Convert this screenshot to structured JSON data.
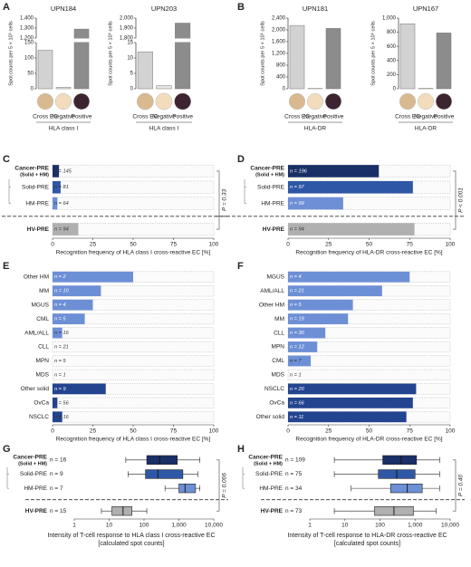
{
  "chart_data": [
    {
      "type": "bar",
      "panel": "A",
      "title": "UPN184",
      "ylabel": "Spot counts per 5 × 10⁵ cells",
      "xlabel": "HLA class I",
      "categories": [
        "Cross EC",
        "Negative",
        "Positive"
      ],
      "values": [
        125,
        5,
        1290
      ],
      "colors": [
        "#d2d2d2",
        "#e6e6e6",
        "#8c8c8c"
      ],
      "ylim": [
        0,
        1400
      ],
      "ybreak": [
        150,
        1200
      ],
      "yticks": [
        0,
        50,
        100,
        150,
        {
          "value": 1200,
          "label": "1,200"
        },
        {
          "value": 1300,
          "label": "1,300"
        },
        {
          "value": 1400,
          "label": "1,400"
        }
      ]
    },
    {
      "type": "bar",
      "title": "UPN203",
      "ylabel": "Spot counts per 5 × 10⁵ cells",
      "xlabel": "HLA class I",
      "categories": [
        "Cross EC",
        "Negative",
        "Positive"
      ],
      "values": [
        12,
        1,
        1950
      ],
      "colors": [
        "#d2d2d2",
        "#e6e6e6",
        "#8c8c8c"
      ],
      "ylim": [
        0,
        2000
      ],
      "ybreak": [
        15,
        1800
      ],
      "yticks": [
        0,
        5,
        10,
        15,
        {
          "value": 1800,
          "label": "1,800"
        },
        {
          "value": 1900,
          "label": "1,900"
        },
        {
          "value": 2000,
          "label": "2,000"
        }
      ]
    },
    {
      "type": "bar",
      "panel": "B",
      "title": "UPN181",
      "ylabel": "Spot counts per 5 × 10⁵ cells",
      "xlabel": "HLA-DR",
      "categories": [
        "Cross EC",
        "Negative",
        "Positive"
      ],
      "values": [
        2150,
        10,
        2050
      ],
      "colors": [
        "#d2d2d2",
        "#e6e6e6",
        "#8c8c8c"
      ],
      "ylim": [
        0,
        2400
      ],
      "yticks": [
        0,
        400,
        800,
        {
          "value": 1200,
          "label": "1,200"
        },
        {
          "value": 1600,
          "label": "1,600"
        },
        {
          "value": 2000,
          "label": "2,000"
        },
        {
          "value": 2400,
          "label": "2,400"
        }
      ]
    },
    {
      "type": "bar",
      "title": "UPN167",
      "ylabel": "Spot counts per 5 × 10⁵ cells",
      "xlabel": "HLA-DR",
      "categories": [
        "Cross EC",
        "Negative",
        "Positive"
      ],
      "values": [
        920,
        5,
        790
      ],
      "colors": [
        "#d2d2d2",
        "#e6e6e6",
        "#8c8c8c"
      ],
      "ylim": [
        0,
        1000
      ],
      "yticks": [
        0,
        200,
        400,
        600,
        800,
        {
          "value": 1000,
          "label": "1,000"
        }
      ]
    },
    {
      "type": "barh",
      "panel": "C",
      "xlabel": "Recognition frequency of HLA class I cross-reactive EC [%]",
      "categories": [
        "Cancer-PRE",
        "Solid-PRE",
        "HM-PRE",
        "HV-PRE"
      ],
      "category_sublabel": "(Solid + HM)",
      "n_labels": [
        "n = 145",
        "n = 81",
        "n = 64",
        "n = 94"
      ],
      "values": [
        4,
        5,
        3,
        16
      ],
      "colors": [
        "#1a2f66",
        "#2e57a6",
        "#6d8fd6",
        "#b0b0b0"
      ],
      "separator": true,
      "annotation": "P = 0.33",
      "xlim": [
        0,
        100
      ],
      "xticks": [
        0,
        25,
        50,
        75,
        100
      ]
    },
    {
      "type": "barh",
      "panel": "D",
      "xlabel": "Recognition frequency of HLA-DR cross-reactive EC [%]",
      "categories": [
        "Cancer-PRE",
        "Solid-PRE",
        "HM-PRE",
        "HV-PRE"
      ],
      "category_sublabel": "(Solid + HM)",
      "n_labels": [
        "n = 196",
        "n = 97",
        "n = 99",
        "n = 94"
      ],
      "values": [
        56,
        77,
        34,
        78
      ],
      "colors": [
        "#1a2f66",
        "#2e57a6",
        "#6d8fd6",
        "#b0b0b0"
      ],
      "separator": true,
      "annotation": "P < 0.001",
      "xlim": [
        0,
        100
      ],
      "xticks": [
        0,
        25,
        50,
        75,
        100
      ]
    },
    {
      "type": "barh",
      "panel": "E",
      "xlabel": "Recognition frequency of HLA class I cross-reactive EC [%]",
      "categories": [
        "Other HM",
        "MM",
        "MGUS",
        "CML",
        "AML/ALL",
        "CLL",
        "MPN",
        "MDS",
        "Other solid",
        "OvCa",
        "NSCLC"
      ],
      "n_labels": [
        "n = 2",
        "n = 10",
        "n = 4",
        "n = 5",
        "n = 16",
        "n = 21",
        "n = 5",
        "n = 1",
        "n = 9",
        "n = 56",
        "n = 16"
      ],
      "values": [
        50,
        30,
        25,
        20,
        6,
        0,
        0,
        0,
        33,
        3,
        6
      ],
      "colors": [
        "#6d8fd6",
        "#6d8fd6",
        "#6d8fd6",
        "#6d8fd6",
        "#6d8fd6",
        "#6d8fd6",
        "#6d8fd6",
        "#6d8fd6",
        "#23448f",
        "#23448f",
        "#23448f"
      ],
      "xlim": [
        0,
        100
      ],
      "xticks": [
        0,
        25,
        50,
        75,
        100
      ]
    },
    {
      "type": "barh",
      "panel": "F",
      "xlabel": "Recognition frequency of HLA-DR cross-reactive EC [%]",
      "categories": [
        "MGUS",
        "AML/ALL",
        "Other HM",
        "MM",
        "CLL",
        "MPN",
        "CML",
        "MDS",
        "NSCLC",
        "OvCa",
        "Other solid"
      ],
      "n_labels": [
        "n = 4",
        "n = 21",
        "n = 5",
        "n = 19",
        "n = 30",
        "n = 12",
        "n = 7",
        "n = 1",
        "n = 20",
        "n = 66",
        "n = 11"
      ],
      "values": [
        75,
        58,
        40,
        37,
        23,
        18,
        14,
        0,
        79,
        77,
        73
      ],
      "colors": [
        "#6d8fd6",
        "#6d8fd6",
        "#6d8fd6",
        "#6d8fd6",
        "#6d8fd6",
        "#6d8fd6",
        "#6d8fd6",
        "#6d8fd6",
        "#23448f",
        "#23448f",
        "#23448f"
      ],
      "xlim": [
        0,
        100
      ],
      "xticks": [
        0,
        25,
        50,
        75,
        100
      ]
    },
    {
      "type": "box",
      "panel": "G",
      "xlabel": [
        "Intensity of T-cell response to HLA class I cross-reactive EC",
        "[calculated spot counts]"
      ],
      "categories": [
        "Cancer-PRE",
        "Solid-PRE",
        "HM-PRE",
        "HV-PRE"
      ],
      "category_sublabel": "(Solid + HM)",
      "n_labels": [
        "n = 16",
        "n = 9",
        "n = 7",
        "n = 15"
      ],
      "whisker_low": [
        30,
        35,
        400,
        6
      ],
      "q1": [
        120,
        110,
        1000,
        12
      ],
      "median": [
        280,
        250,
        1500,
        25
      ],
      "q3": [
        900,
        1300,
        3000,
        45
      ],
      "whisker_high": [
        4000,
        3500,
        4000,
        120
      ],
      "colors": [
        "#1a2f66",
        "#2e57a6",
        "#6d8fd6",
        "#b0b0b0"
      ],
      "separator": true,
      "annotation": "P = 0.006",
      "log": true,
      "xlim": [
        1,
        10000
      ],
      "xticks": [
        1,
        10,
        100,
        {
          "value": 1000,
          "label": "1,000"
        },
        {
          "value": 10000,
          "label": "10,000"
        }
      ]
    },
    {
      "type": "box",
      "panel": "H",
      "xlabel": [
        "Intensity of T-cell response to HLA-DR cross-reactive EC",
        "[calculated spot counts]"
      ],
      "categories": [
        "Cancer-PRE",
        "Solid-PRE",
        "HM-PRE",
        "HV-PRE"
      ],
      "category_sublabel": "(Solid + HM)",
      "n_labels": [
        "n = 109",
        "n = 75",
        "n = 34",
        "n = 73"
      ],
      "whisker_low": [
        5,
        5,
        15,
        5
      ],
      "q1": [
        120,
        90,
        200,
        70
      ],
      "median": [
        400,
        300,
        600,
        250
      ],
      "q3": [
        1100,
        1000,
        1600,
        900
      ],
      "whisker_high": [
        5000,
        5000,
        5000,
        4000
      ],
      "colors": [
        "#1a2f66",
        "#2e57a6",
        "#6d8fd6",
        "#b0b0b0"
      ],
      "separator": true,
      "annotation": "P = 0.40",
      "log": true,
      "xlim": [
        1,
        10000
      ],
      "xticks": [
        1,
        10,
        100,
        {
          "value": 1000,
          "label": "1,000"
        },
        {
          "value": 10000,
          "label": "10,000"
        }
      ]
    }
  ]
}
